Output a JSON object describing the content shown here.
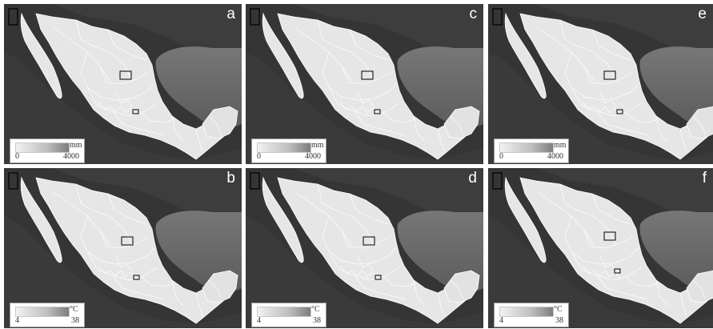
{
  "panels": [
    {
      "letter": "a",
      "legend": {
        "unit": "mm",
        "min": "0",
        "max": "4000"
      }
    },
    {
      "letter": "c",
      "legend": {
        "unit": "mm",
        "min": "0",
        "max": "4000"
      }
    },
    {
      "letter": "e",
      "legend": {
        "unit": "mm",
        "min": "0",
        "max": "4000"
      }
    },
    {
      "letter": "b",
      "legend": {
        "unit": "°C",
        "min": "4",
        "max": "38"
      }
    },
    {
      "letter": "d",
      "legend": {
        "unit": "°C",
        "min": "4",
        "max": "38"
      }
    },
    {
      "letter": "f",
      "legend": {
        "unit": "°C",
        "min": "4",
        "max": "38"
      }
    }
  ],
  "colors": {
    "background": "#2f2f2f",
    "ocean": "#6b6b6b",
    "land": "#e6e6e6",
    "boundary": "#ffffff",
    "inset_box": "#000000"
  },
  "icons": [
    "study-area-rectangle",
    "state-boundaries",
    "color-ramp-legend"
  ]
}
